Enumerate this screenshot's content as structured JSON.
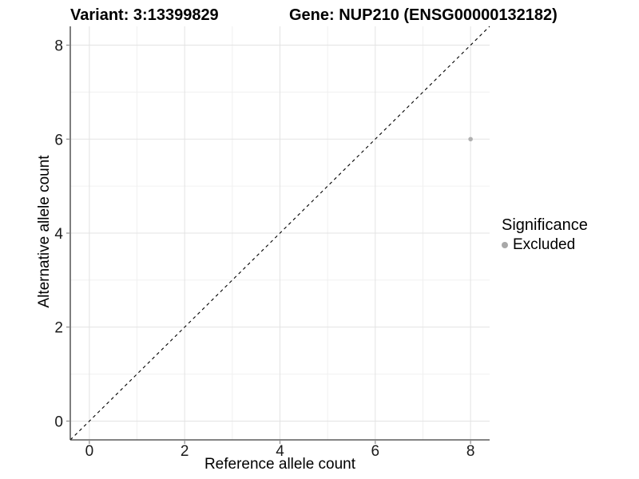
{
  "chart_data": {
    "type": "scatter",
    "title_left": "Variant: 3:13399829",
    "title_right": "Gene: NUP210 (ENSG00000132182)",
    "xlabel": "Reference allele count",
    "ylabel": "Alternative allele count",
    "xlim": [
      -0.4,
      8.4
    ],
    "ylim": [
      -0.4,
      8.4
    ],
    "x_ticks": [
      0,
      2,
      4,
      6,
      8
    ],
    "y_ticks": [
      0,
      2,
      4,
      6,
      8
    ],
    "x_minor_ticks": [
      1,
      3,
      5,
      7
    ],
    "y_minor_ticks": [
      1,
      3,
      5,
      7
    ],
    "grid": true,
    "legend_position": "right",
    "reference_line": {
      "style": "dashed",
      "equation": "y = x",
      "color": "#000000"
    },
    "series": [
      {
        "name": "Excluded",
        "color": "#b0b0b0",
        "points": [
          {
            "x": 8,
            "y": 6
          }
        ]
      }
    ],
    "legend": {
      "title": "Significance",
      "items": [
        {
          "label": "Excluded",
          "color": "#a8a8a8"
        }
      ]
    }
  },
  "colors": {
    "background": "#ffffff",
    "grid_major": "#e3e3e3",
    "grid_minor": "#f0f0f0",
    "axis_line": "#3a3a3a",
    "tick_mark": "#8c8c8c",
    "tick_label": "#1a1a1a",
    "title": "#000000"
  }
}
